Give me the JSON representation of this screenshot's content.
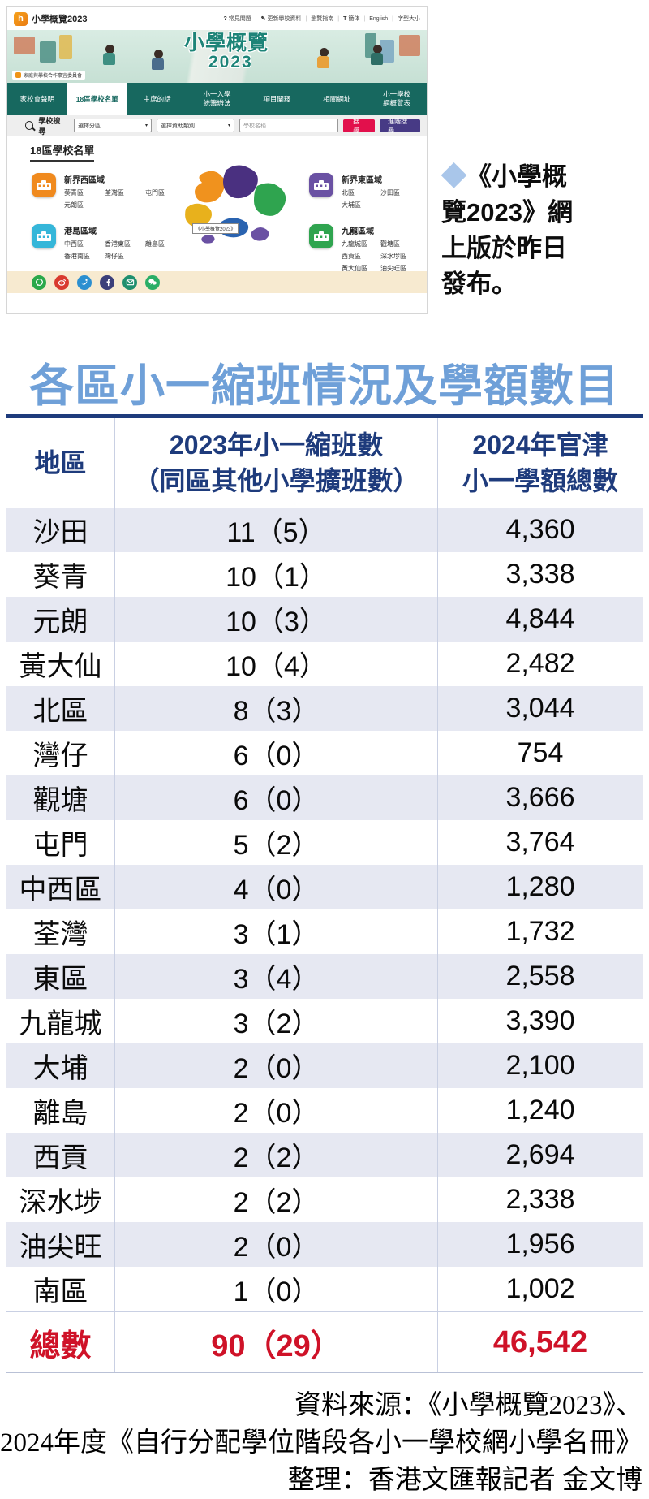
{
  "site": {
    "brand": "小學概覽2023",
    "top_links": [
      {
        "icon": "?",
        "label": "常見問題"
      },
      {
        "icon": "✎",
        "label": "更新學校資料"
      },
      {
        "icon": "",
        "label": "瀏覽指南"
      },
      {
        "icon": "T",
        "label": "簡体"
      },
      {
        "icon": "",
        "label": "English"
      },
      {
        "icon": "",
        "label": "字型大小"
      }
    ],
    "banner": {
      "title": "小學概覽",
      "year": "2023",
      "committee": "家庭與學校合作事宜委員會"
    },
    "nav": [
      {
        "label": "家校會聲明",
        "active": false
      },
      {
        "label": "18區學校名單",
        "active": true
      },
      {
        "label": "主席的話",
        "active": false
      },
      {
        "label": "小一入學\n統籌辦法",
        "active": false
      },
      {
        "label": "項目闡釋",
        "active": false
      },
      {
        "label": "相關網址",
        "active": false
      },
      {
        "label": "小一學校\n網概覽表",
        "active": false
      }
    ],
    "search": {
      "label": "學校搜尋",
      "district_select": "選擇分區",
      "type_select": "選擇資助類別",
      "name_placeholder": "學校名稱",
      "search_button": "搜尋",
      "advanced_button": "進階搜尋"
    },
    "section_title": "18區學校名單",
    "regions": [
      {
        "name": "新界西區域",
        "color": "#f08a1e",
        "side": "left",
        "districts": [
          "葵青區",
          "荃灣區",
          "屯門區",
          "元朗區"
        ]
      },
      {
        "name": "港島區域",
        "color": "#35b6d9",
        "side": "left",
        "districts": [
          "中西區",
          "香港東區",
          "離島區",
          "香港南區",
          "灣仔區"
        ]
      },
      {
        "name": "新界東區域",
        "color": "#6a51a3",
        "side": "right",
        "districts": [
          "北區",
          "沙田區",
          "大埔區"
        ]
      },
      {
        "name": "九龍區域",
        "color": "#2fa44f",
        "side": "right",
        "districts": [
          "九龍城區",
          "觀塘區",
          "西貢區",
          "深水埗區",
          "黃大仙區",
          "油尖旺區"
        ]
      }
    ],
    "map_label": "《小學概覽2023》",
    "social_icons": [
      "whatsapp",
      "weibo",
      "twitter",
      "facebook",
      "email",
      "wechat"
    ]
  },
  "caption": {
    "diamond": "◆",
    "lines": [
      "《小學概",
      "覽2023》網",
      "上版於昨日",
      "發布。"
    ]
  },
  "headline": "各區小一縮班情況及學額數目",
  "chart_data": {
    "type": "table",
    "title": "各區小一縮班情況及學額數目",
    "columns": [
      "地區",
      "2023年小一縮班數（同區其他小學擴班數）",
      "2024年官津小一學額總數"
    ],
    "header_display": {
      "col1": "地區",
      "col2_line1": "2023年小一縮班數",
      "col2_line2": "（同區其他小學擴班數）",
      "col3_line1": "2024年官津",
      "col3_line2": "小一學額總數"
    },
    "rows": [
      [
        "沙田",
        "11（5）",
        "4,360"
      ],
      [
        "葵青",
        "10（1）",
        "3,338"
      ],
      [
        "元朗",
        "10（3）",
        "4,844"
      ],
      [
        "黃大仙",
        "10（4）",
        "2,482"
      ],
      [
        "北區",
        "8（3）",
        "3,044"
      ],
      [
        "灣仔",
        "6（0）",
        "754"
      ],
      [
        "觀塘",
        "6（0）",
        "3,666"
      ],
      [
        "屯門",
        "5（2）",
        "3,764"
      ],
      [
        "中西區",
        "4（0）",
        "1,280"
      ],
      [
        "荃灣",
        "3（1）",
        "1,732"
      ],
      [
        "東區",
        "3（4）",
        "2,558"
      ],
      [
        "九龍城",
        "3（2）",
        "3,390"
      ],
      [
        "大埔",
        "2（0）",
        "2,100"
      ],
      [
        "離島",
        "2（0）",
        "1,240"
      ],
      [
        "西貢",
        "2（2）",
        "2,694"
      ],
      [
        "深水埗",
        "2（2）",
        "2,338"
      ],
      [
        "油尖旺",
        "2（0）",
        "1,956"
      ],
      [
        "南區",
        "1（0）",
        "1,002"
      ]
    ],
    "total": [
      "總數",
      "90（29）",
      "46,542"
    ]
  },
  "footer": {
    "lines": [
      "資料來源：《小學概覽2023》、",
      "2024年度《自行分配學位階段各小一學校網小學名冊》",
      "整理：香港文匯報記者 金文博"
    ]
  },
  "colors": {
    "headline_blue": "#6fa0d8",
    "table_navy": "#1e3b7c",
    "total_red": "#cf1228",
    "nav_teal": "#17685f",
    "search_red": "#e2104c",
    "advanced_purple": "#473a85",
    "shaded_row": "#e6e8f2"
  }
}
